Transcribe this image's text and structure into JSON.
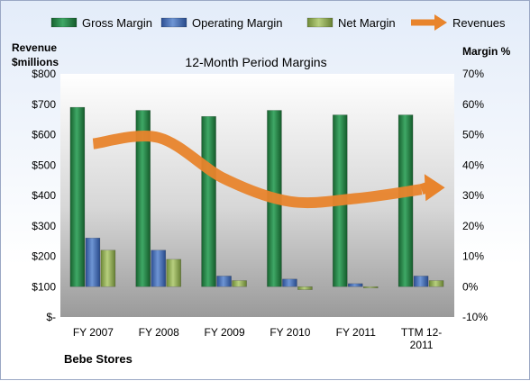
{
  "company": "Bebe Stores",
  "chart_data": {
    "type": "bar",
    "title": "12-Month Period Margins",
    "categories": [
      "FY 2007",
      "FY 2008",
      "FY 2009",
      "FY 2010",
      "FY 2011",
      "TTM 12-2011"
    ],
    "series": [
      {
        "name": "Gross Margin",
        "axis": "right",
        "values": [
          59,
          58,
          56,
          58,
          56.5,
          56.5
        ],
        "color": "#1e7a3c"
      },
      {
        "name": "Operating Margin",
        "axis": "right",
        "values": [
          16,
          12,
          3.5,
          2.5,
          1,
          3.5
        ],
        "color": "#3a64b0"
      },
      {
        "name": "Net Margin",
        "axis": "right",
        "values": [
          12,
          9,
          2,
          -1,
          0,
          2
        ],
        "color": "#8fae4f"
      },
      {
        "name": "Revenues",
        "axis": "left",
        "type": "line",
        "values": [
          570,
          590,
          455,
          380,
          390,
          420
        ],
        "color": "#e8842c"
      }
    ],
    "y_left": {
      "label_line1": "Revenue",
      "label_line2": "$millions",
      "min": 0,
      "max": 800,
      "ticks": [
        0,
        100,
        200,
        300,
        400,
        500,
        600,
        700,
        800
      ],
      "tick_labels": [
        "$-",
        "$100",
        "$200",
        "$300",
        "$400",
        "$500",
        "$600",
        "$700",
        "$800"
      ]
    },
    "y_right": {
      "label": "Margin %",
      "min": -10,
      "max": 70,
      "ticks": [
        -10,
        0,
        10,
        20,
        30,
        40,
        50,
        60,
        70
      ],
      "tick_labels": [
        "-10%",
        "0%",
        "10%",
        "20%",
        "30%",
        "40%",
        "50%",
        "60%",
        "70%"
      ]
    },
    "x_tick_labels": [
      [
        "FY 2007"
      ],
      [
        "FY 2008"
      ],
      [
        "FY 2009"
      ],
      [
        "FY 2010"
      ],
      [
        "FY 2011"
      ],
      [
        "TTM 12-",
        "2011"
      ]
    ],
    "legend_position": "top",
    "grid": false
  }
}
